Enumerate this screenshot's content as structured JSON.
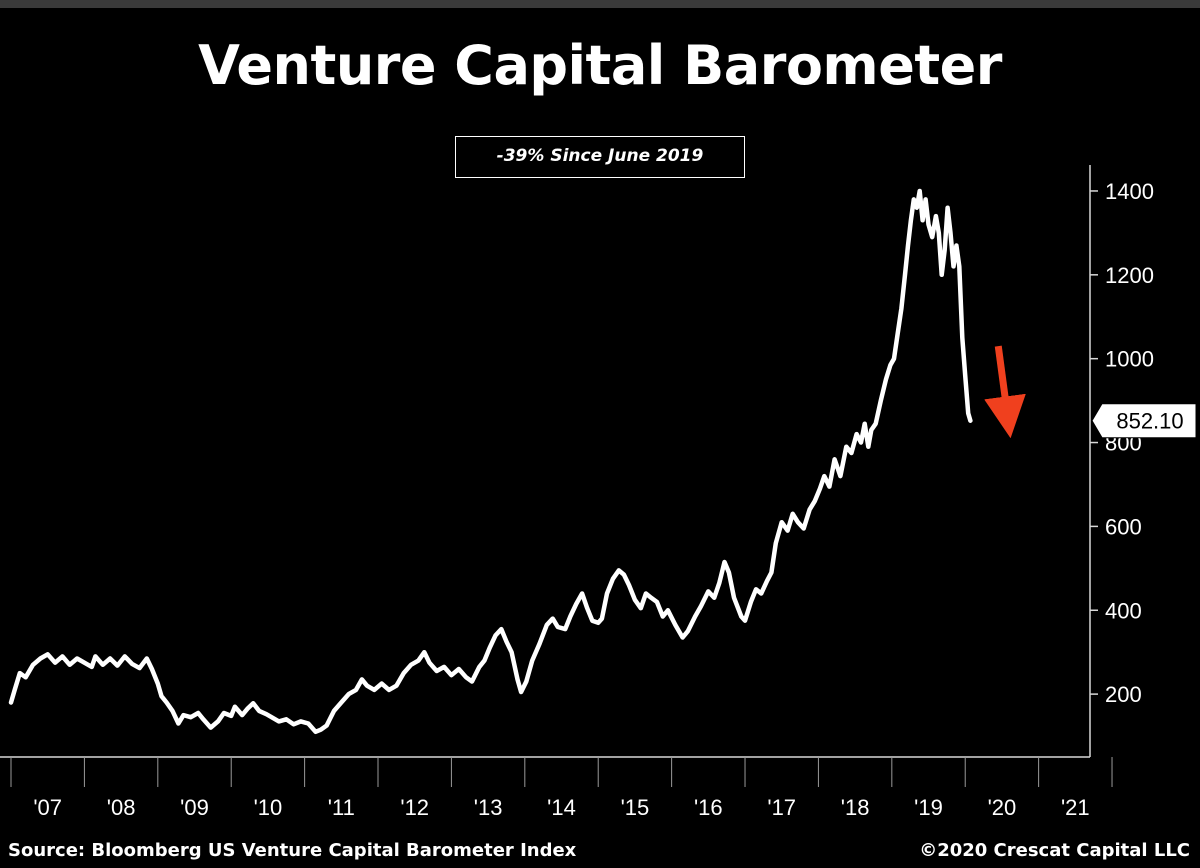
{
  "header": {
    "title": "Venture Capital Barometer",
    "annotation": "-39% Since June 2019"
  },
  "footer": {
    "source": "Source: Bloomberg US Venture Capital Barometer Index",
    "copyright": "©2020 Crescat Capital LLC"
  },
  "colors": {
    "background": "#000000",
    "line": "#ffffff",
    "arrow": "#f0401e"
  },
  "chart_data": {
    "type": "line",
    "title": "Venture Capital Barometer",
    "xlabel": "",
    "ylabel": "",
    "x_ticks": [
      "'07",
      "'08",
      "'09",
      "'10",
      "'11",
      "'12",
      "'13",
      "'14",
      "'15",
      "'16",
      "'17",
      "'18",
      "'19",
      "'20",
      "'21"
    ],
    "y_ticks": [
      200,
      400,
      600,
      800,
      1000,
      1200,
      1400
    ],
    "xlim": [
      2006.85,
      2021.7
    ],
    "ylim": [
      50,
      1450
    ],
    "last_value_label": "852.10",
    "grid": false,
    "legend": "none",
    "series": [
      {
        "values": [
          [
            2007.0,
            180
          ],
          [
            2007.05,
            210
          ],
          [
            2007.12,
            250
          ],
          [
            2007.2,
            240
          ],
          [
            2007.3,
            270
          ],
          [
            2007.4,
            285
          ],
          [
            2007.5,
            295
          ],
          [
            2007.6,
            275
          ],
          [
            2007.7,
            290
          ],
          [
            2007.8,
            270
          ],
          [
            2007.9,
            285
          ],
          [
            2008.0,
            275
          ],
          [
            2008.1,
            265
          ],
          [
            2008.15,
            290
          ],
          [
            2008.25,
            270
          ],
          [
            2008.35,
            285
          ],
          [
            2008.45,
            268
          ],
          [
            2008.55,
            290
          ],
          [
            2008.65,
            272
          ],
          [
            2008.75,
            262
          ],
          [
            2008.85,
            285
          ],
          [
            2008.92,
            260
          ],
          [
            2009.0,
            225
          ],
          [
            2009.05,
            195
          ],
          [
            2009.12,
            180
          ],
          [
            2009.2,
            160
          ],
          [
            2009.28,
            130
          ],
          [
            2009.35,
            150
          ],
          [
            2009.45,
            145
          ],
          [
            2009.55,
            155
          ],
          [
            2009.62,
            140
          ],
          [
            2009.72,
            120
          ],
          [
            2009.82,
            135
          ],
          [
            2009.9,
            155
          ],
          [
            2010.0,
            148
          ],
          [
            2010.05,
            170
          ],
          [
            2010.15,
            150
          ],
          [
            2010.22,
            165
          ],
          [
            2010.3,
            178
          ],
          [
            2010.38,
            160
          ],
          [
            2010.48,
            152
          ],
          [
            2010.55,
            145
          ],
          [
            2010.65,
            135
          ],
          [
            2010.75,
            140
          ],
          [
            2010.85,
            128
          ],
          [
            2010.95,
            135
          ],
          [
            2011.05,
            130
          ],
          [
            2011.15,
            110
          ],
          [
            2011.22,
            115
          ],
          [
            2011.3,
            125
          ],
          [
            2011.4,
            160
          ],
          [
            2011.5,
            180
          ],
          [
            2011.6,
            200
          ],
          [
            2011.7,
            210
          ],
          [
            2011.78,
            235
          ],
          [
            2011.85,
            220
          ],
          [
            2011.95,
            210
          ],
          [
            2012.05,
            225
          ],
          [
            2012.15,
            210
          ],
          [
            2012.25,
            220
          ],
          [
            2012.35,
            250
          ],
          [
            2012.45,
            270
          ],
          [
            2012.55,
            280
          ],
          [
            2012.63,
            300
          ],
          [
            2012.7,
            275
          ],
          [
            2012.8,
            255
          ],
          [
            2012.9,
            265
          ],
          [
            2013.0,
            245
          ],
          [
            2013.1,
            260
          ],
          [
            2013.2,
            240
          ],
          [
            2013.28,
            230
          ],
          [
            2013.38,
            265
          ],
          [
            2013.45,
            280
          ],
          [
            2013.52,
            310
          ],
          [
            2013.6,
            340
          ],
          [
            2013.68,
            355
          ],
          [
            2013.75,
            325
          ],
          [
            2013.82,
            300
          ],
          [
            2013.9,
            235
          ],
          [
            2013.95,
            205
          ],
          [
            2014.02,
            230
          ],
          [
            2014.1,
            280
          ],
          [
            2014.2,
            320
          ],
          [
            2014.3,
            365
          ],
          [
            2014.38,
            380
          ],
          [
            2014.45,
            360
          ],
          [
            2014.55,
            355
          ],
          [
            2014.62,
            385
          ],
          [
            2014.7,
            415
          ],
          [
            2014.78,
            440
          ],
          [
            2014.85,
            405
          ],
          [
            2014.92,
            375
          ],
          [
            2015.0,
            370
          ],
          [
            2015.05,
            380
          ],
          [
            2015.12,
            440
          ],
          [
            2015.2,
            475
          ],
          [
            2015.28,
            495
          ],
          [
            2015.35,
            485
          ],
          [
            2015.42,
            460
          ],
          [
            2015.5,
            425
          ],
          [
            2015.58,
            405
          ],
          [
            2015.65,
            440
          ],
          [
            2015.72,
            430
          ],
          [
            2015.8,
            420
          ],
          [
            2015.88,
            385
          ],
          [
            2015.95,
            400
          ],
          [
            2016.05,
            365
          ],
          [
            2016.15,
            335
          ],
          [
            2016.22,
            350
          ],
          [
            2016.32,
            385
          ],
          [
            2016.4,
            410
          ],
          [
            2016.5,
            445
          ],
          [
            2016.58,
            430
          ],
          [
            2016.65,
            465
          ],
          [
            2016.72,
            515
          ],
          [
            2016.78,
            490
          ],
          [
            2016.85,
            430
          ],
          [
            2016.95,
            385
          ],
          [
            2017.0,
            375
          ],
          [
            2017.08,
            420
          ],
          [
            2017.15,
            450
          ],
          [
            2017.22,
            440
          ],
          [
            2017.3,
            470
          ],
          [
            2017.36,
            490
          ],
          [
            2017.42,
            560
          ],
          [
            2017.5,
            610
          ],
          [
            2017.58,
            590
          ],
          [
            2017.65,
            630
          ],
          [
            2017.72,
            610
          ],
          [
            2017.8,
            595
          ],
          [
            2017.88,
            640
          ],
          [
            2017.95,
            660
          ],
          [
            2018.02,
            690
          ],
          [
            2018.08,
            720
          ],
          [
            2018.15,
            695
          ],
          [
            2018.22,
            760
          ],
          [
            2018.3,
            720
          ],
          [
            2018.38,
            790
          ],
          [
            2018.45,
            775
          ],
          [
            2018.52,
            820
          ],
          [
            2018.58,
            800
          ],
          [
            2018.63,
            845
          ],
          [
            2018.68,
            790
          ],
          [
            2018.72,
            830
          ],
          [
            2018.78,
            845
          ],
          [
            2018.85,
            900
          ],
          [
            2018.92,
            950
          ],
          [
            2018.98,
            985
          ],
          [
            2019.03,
            1000
          ],
          [
            2019.08,
            1060
          ],
          [
            2019.13,
            1120
          ],
          [
            2019.18,
            1200
          ],
          [
            2019.22,
            1270
          ],
          [
            2019.26,
            1330
          ],
          [
            2019.3,
            1380
          ],
          [
            2019.34,
            1360
          ],
          [
            2019.38,
            1400
          ],
          [
            2019.42,
            1330
          ],
          [
            2019.46,
            1380
          ],
          [
            2019.5,
            1320
          ],
          [
            2019.55,
            1290
          ],
          [
            2019.6,
            1340
          ],
          [
            2019.64,
            1300
          ],
          [
            2019.68,
            1200
          ],
          [
            2019.72,
            1260
          ],
          [
            2019.76,
            1360
          ],
          [
            2019.8,
            1300
          ],
          [
            2019.84,
            1220
          ],
          [
            2019.88,
            1270
          ],
          [
            2019.92,
            1220
          ],
          [
            2019.96,
            1050
          ],
          [
            2020.0,
            960
          ],
          [
            2020.04,
            870
          ],
          [
            2020.07,
            852.1
          ]
        ]
      }
    ],
    "annotation_arrow": {
      "from": [
        2020.45,
        1030
      ],
      "to": [
        2020.58,
        860
      ]
    }
  }
}
